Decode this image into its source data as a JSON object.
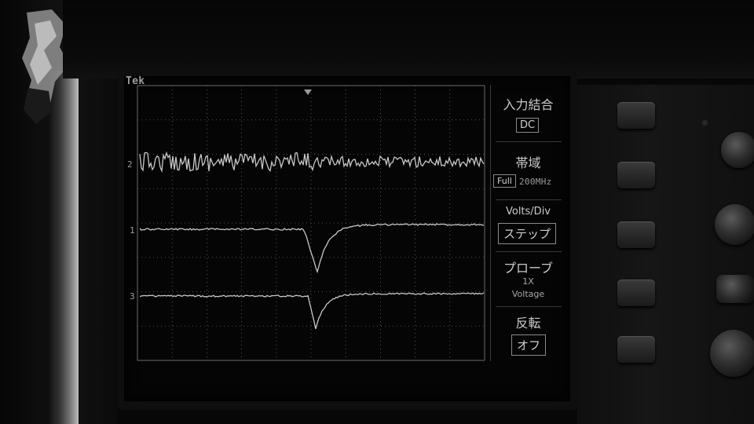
{
  "scope": {
    "brand": "Tek",
    "channel1_marker": "2",
    "channel2_marker": "1",
    "channel3_marker": "3"
  },
  "menu": {
    "coupling_title": "入力結合",
    "coupling_value": "DC",
    "bandwidth_title": "帯域",
    "bandwidth_mode": "Full",
    "bandwidth_value": "200MHz",
    "volts_title": "Volts/Div",
    "volts_value": "ステップ",
    "probe_title": "プローブ",
    "probe_multiplier": "1X",
    "probe_type": "Voltage",
    "invert_title": "反転",
    "invert_value": "オフ"
  },
  "colors": {
    "trace": "#c8c8c8",
    "grid": "#6a6a6a",
    "background": "#050505"
  }
}
